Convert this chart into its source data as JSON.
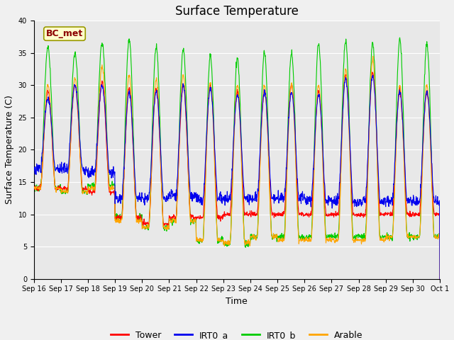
{
  "title": "Surface Temperature",
  "ylabel": "Surface Temperature (C)",
  "xlabel": "Time",
  "ylim": [
    0,
    40
  ],
  "xlim": [
    0,
    15
  ],
  "annotation_text": "BC_met",
  "annotation_bbox_facecolor": "#ffffcc",
  "annotation_bbox_edgecolor": "#999900",
  "annotation_text_color": "#8B0000",
  "colors": {
    "Tower": "#ff0000",
    "IRT0_a": "#0000ee",
    "IRT0_b": "#00cc00",
    "Arable": "#ffa500"
  },
  "legend_labels": [
    "Tower",
    "IRT0_a",
    "IRT0_b",
    "Arable"
  ],
  "xtick_labels": [
    "Sep 16",
    "Sep 17",
    "Sep 18",
    "Sep 19",
    "Sep 20",
    "Sep 21",
    "Sep 22",
    "Sep 23",
    "Sep 24",
    "Sep 25",
    "Sep 26",
    "Sep 27",
    "Sep 28",
    "Sep 29",
    "Sep 30",
    "Oct 1"
  ],
  "plot_bg_color": "#e8e8e8",
  "fig_bg_color": "#f0f0f0",
  "grid_color": "#ffffff",
  "title_fontsize": 12,
  "label_fontsize": 9,
  "tick_fontsize": 7,
  "yticks": [
    0,
    5,
    10,
    15,
    20,
    25,
    30,
    35,
    40
  ],
  "n_days": 15,
  "pts_per_day": 96,
  "day_peaks_green": [
    36,
    35,
    36.5,
    37,
    36,
    35.5,
    34.5,
    34,
    35,
    35,
    36.5,
    37,
    36.5,
    37,
    36.5
  ],
  "day_mins_green": [
    14,
    13.5,
    14.5,
    9.5,
    8.0,
    9.0,
    6.0,
    5.5,
    6.5,
    6.5,
    6.5,
    6.5,
    6.5,
    6.5,
    6.5
  ],
  "day_peaks_red": [
    29,
    30,
    30.5,
    29.5,
    29.5,
    30,
    30,
    29,
    29,
    30,
    29,
    31.5,
    32,
    29,
    29
  ],
  "day_mins_red": [
    14,
    14,
    13.5,
    9.5,
    8.5,
    9.5,
    9.5,
    10,
    10,
    10,
    10,
    10,
    10,
    10,
    10
  ],
  "day_peaks_blue": [
    28,
    30,
    30,
    29,
    29,
    30,
    29.5,
    28.5,
    29,
    29,
    28.5,
    31,
    31.5,
    29,
    29
  ],
  "day_mins_blue": [
    17,
    17,
    16.5,
    12.5,
    12.5,
    13,
    12.5,
    12.5,
    12.5,
    12.5,
    12,
    12,
    12,
    12,
    12
  ],
  "day_peaks_orange": [
    30,
    31,
    33,
    31.5,
    31,
    31.5,
    30.5,
    30,
    30,
    30,
    30,
    32.5,
    34,
    30,
    30
  ],
  "day_mins_orange": [
    14,
    13.5,
    14,
    9.0,
    8.0,
    9.0,
    6.0,
    5.5,
    6.5,
    6.0,
    6.0,
    6.0,
    6.0,
    6.5,
    6.5
  ],
  "linewidth": 0.8
}
